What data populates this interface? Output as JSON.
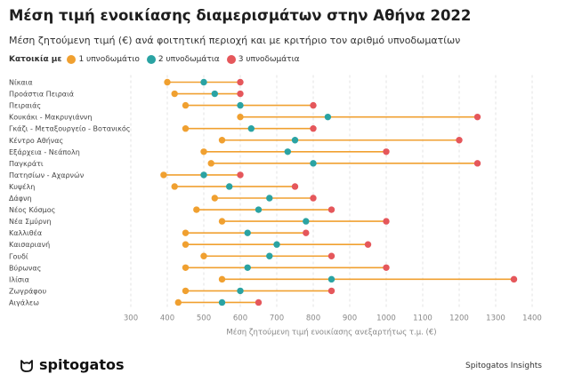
{
  "title": "Μέση τιμή ενοικίασης διαμερισμάτων στην Αθήνα 2022",
  "subtitle": "Μέση ζητούμενη τιμή (€) ανά φοιτητική περιοχή και με κριτήριο τον αριθμό υπνοδωματίων",
  "legend": {
    "title": "Κατοικία με",
    "items": [
      {
        "label": "1 υπνοδωμάτιο",
        "color": "#f0a030"
      },
      {
        "label": "2 υπνοδωμάτια",
        "color": "#2aa3a3"
      },
      {
        "label": "3 υπνοδωμάτια",
        "color": "#e5575b"
      }
    ]
  },
  "footer": {
    "brand": "spitogatos",
    "source": "Spitogatos Insights"
  },
  "chart_data": {
    "type": "dumbbell",
    "xlabel": "Μέση ζητούμενη τιμή ενοικίασης ανεξαρτήτως τ.μ. (€)",
    "xlim": [
      300,
      1400
    ],
    "xticks": [
      "300",
      "400",
      "500",
      "600",
      "700",
      "800",
      "900",
      "1000",
      "1100",
      "1200",
      "1300",
      "1400"
    ],
    "grid": "vertical dashed",
    "colors": {
      "one": "#f0a030",
      "two": "#2aa3a3",
      "three": "#e5575b"
    },
    "series_names": [
      "1 υπνοδωμάτιο",
      "2 υπνοδωμάτια",
      "3 υπνοδωμάτια"
    ],
    "categories": [
      "Νίκαια",
      "Προάστια Πειραιά",
      "Πειραιάς",
      "Κουκάκι - Μακρυγιάννη",
      "Γκάζι - Μεταξουργείο - Βοτανικός",
      "Κέντρο Αθήνας",
      "Εξάρχεια - Νεάπολη",
      "Παγκράτι",
      "Πατησίων - Αχαρνών",
      "Κυψέλη",
      "Δάφνη",
      "Νέος Κόσμος",
      "Νέα Σμύρνη",
      "Καλλιθέα",
      "Καισαριανή",
      "Γουδί",
      "Βύρωνας",
      "Ιλίσια",
      "Ζωγράφου",
      "Αιγάλεω"
    ],
    "one": [
      400,
      420,
      450,
      600,
      450,
      550,
      500,
      520,
      390,
      420,
      530,
      480,
      550,
      450,
      450,
      500,
      450,
      550,
      450,
      430
    ],
    "two": [
      500,
      530,
      600,
      840,
      630,
      750,
      730,
      800,
      500,
      570,
      680,
      650,
      780,
      620,
      700,
      680,
      620,
      850,
      600,
      550
    ],
    "three": [
      600,
      600,
      800,
      1250,
      800,
      1200,
      1000,
      1250,
      600,
      750,
      800,
      850,
      1000,
      780,
      950,
      850,
      1000,
      1350,
      850,
      650
    ]
  }
}
